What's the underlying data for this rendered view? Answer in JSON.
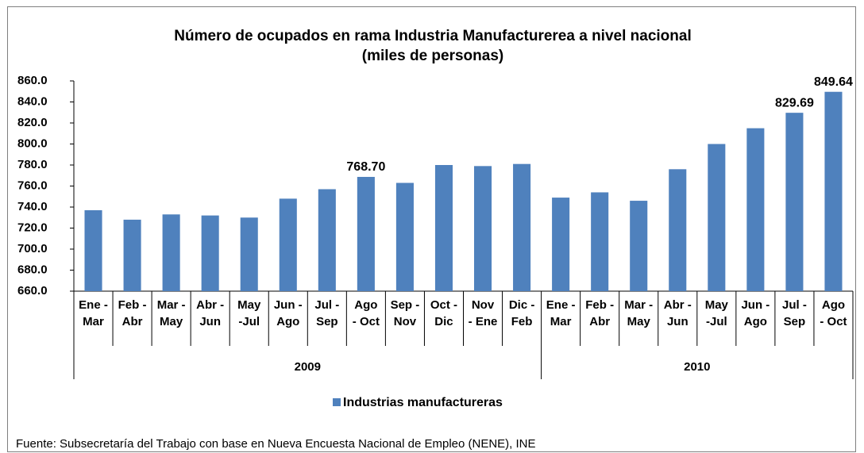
{
  "chart_data": {
    "type": "bar",
    "title": [
      "Número de ocupados en rama Industria Manufacturerea a nivel nacional",
      "(miles de personas)"
    ],
    "category_groups": [
      {
        "name": "2009",
        "categories": [
          [
            "Ene -",
            "Mar"
          ],
          [
            "Feb -",
            "Abr"
          ],
          [
            "Mar -",
            "May"
          ],
          [
            "Abr -",
            "Jun"
          ],
          [
            "May",
            "-Jul"
          ],
          [
            "Jun -",
            "Ago"
          ],
          [
            "Jul -",
            "Sep"
          ],
          [
            "Ago",
            "- Oct"
          ],
          [
            "Sep -",
            "Nov"
          ],
          [
            "Oct -",
            "Dic"
          ],
          [
            "Nov",
            "- Ene"
          ],
          [
            "Dic -",
            "Feb"
          ]
        ]
      },
      {
        "name": "2010",
        "categories": [
          [
            "Ene -",
            "Mar"
          ],
          [
            "Feb -",
            "Abr"
          ],
          [
            "Mar -",
            "May"
          ],
          [
            "Abr -",
            "Jun"
          ],
          [
            "May",
            "-Jul"
          ],
          [
            "Jun -",
            "Ago"
          ],
          [
            "Jul -",
            "Sep"
          ],
          [
            "Ago",
            "- Oct"
          ]
        ]
      }
    ],
    "series": [
      {
        "name": "Industrias manufactureras",
        "color": "#4f81bd",
        "values": [
          737,
          728,
          733,
          732,
          730,
          748,
          757,
          768.7,
          763,
          780,
          779,
          781,
          749,
          754,
          746,
          776,
          800,
          815,
          829.69,
          849.64
        ],
        "value_labels": [
          null,
          null,
          null,
          null,
          null,
          null,
          null,
          "768.70",
          null,
          null,
          null,
          null,
          null,
          null,
          null,
          null,
          null,
          null,
          "829.69",
          "849.64"
        ]
      }
    ],
    "ylim": [
      660,
      860
    ],
    "yticks": [
      {
        "value": 660,
        "label": "660.0"
      },
      {
        "value": 680,
        "label": "680.0"
      },
      {
        "value": 700,
        "label": "700.0"
      },
      {
        "value": 720,
        "label": "720.0"
      },
      {
        "value": 740,
        "label": "740.0"
      },
      {
        "value": 760,
        "label": "760.0"
      },
      {
        "value": 780,
        "label": "780.0"
      },
      {
        "value": 800,
        "label": "800.0"
      },
      {
        "value": 820,
        "label": "820.0"
      },
      {
        "value": 840,
        "label": "840.0"
      },
      {
        "value": 860,
        "label": "860.0"
      }
    ],
    "legend": "bottom",
    "source": "Fuente: Subsecretaría del Trabajo con base en Nueva Encuesta Nacional de Empleo (NENE), INE"
  }
}
